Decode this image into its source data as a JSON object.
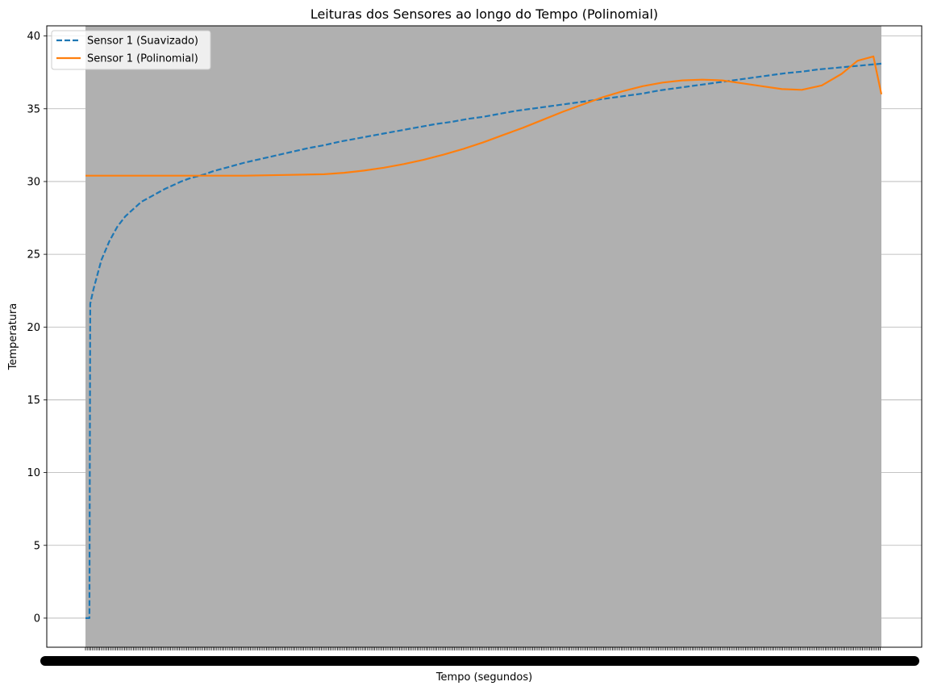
{
  "chart_data": {
    "type": "line",
    "title": "Leituras dos Sensores ao longo do Tempo (Polinomial)",
    "xlabel": "Tempo (segundos)",
    "ylabel": "Temperatura",
    "xlim": [
      0,
      1
    ],
    "ylim": [
      -2,
      40.7
    ],
    "yticks": [
      0,
      5,
      10,
      15,
      20,
      25,
      30,
      35,
      40
    ],
    "grid": "horizontal",
    "legend_position": "top-left",
    "background_band": {
      "x_start": 0.0,
      "x_end": 1.0,
      "color": "#b0b0b0"
    },
    "x_tick_labels_note": "overlapping, illegible dense timestamp labels",
    "series": [
      {
        "name": "Sensor 1 (Suavizado)",
        "style": "dashed",
        "color": "#1f77b4",
        "points": [
          [
            0.0,
            0.0
          ],
          [
            0.005,
            0.0
          ],
          [
            0.006,
            21.6
          ],
          [
            0.01,
            22.6
          ],
          [
            0.02,
            24.6
          ],
          [
            0.03,
            25.9
          ],
          [
            0.04,
            26.9
          ],
          [
            0.05,
            27.6
          ],
          [
            0.06,
            28.1
          ],
          [
            0.07,
            28.6
          ],
          [
            0.08,
            28.9
          ],
          [
            0.09,
            29.2
          ],
          [
            0.1,
            29.5
          ],
          [
            0.11,
            29.75
          ],
          [
            0.12,
            30.0
          ],
          [
            0.13,
            30.2
          ],
          [
            0.14,
            30.35
          ],
          [
            0.15,
            30.5
          ],
          [
            0.16,
            30.7
          ],
          [
            0.17,
            30.85
          ],
          [
            0.18,
            31.0
          ],
          [
            0.2,
            31.3
          ],
          [
            0.22,
            31.55
          ],
          [
            0.24,
            31.8
          ],
          [
            0.26,
            32.05
          ],
          [
            0.28,
            32.3
          ],
          [
            0.3,
            32.5
          ],
          [
            0.32,
            32.75
          ],
          [
            0.34,
            32.95
          ],
          [
            0.36,
            33.15
          ],
          [
            0.38,
            33.35
          ],
          [
            0.4,
            33.55
          ],
          [
            0.42,
            33.75
          ],
          [
            0.44,
            33.95
          ],
          [
            0.46,
            34.1
          ],
          [
            0.48,
            34.3
          ],
          [
            0.5,
            34.45
          ],
          [
            0.52,
            34.65
          ],
          [
            0.54,
            34.85
          ],
          [
            0.56,
            35.0
          ],
          [
            0.58,
            35.15
          ],
          [
            0.6,
            35.3
          ],
          [
            0.62,
            35.45
          ],
          [
            0.64,
            35.6
          ],
          [
            0.66,
            35.75
          ],
          [
            0.68,
            35.9
          ],
          [
            0.7,
            36.05
          ],
          [
            0.72,
            36.25
          ],
          [
            0.74,
            36.4
          ],
          [
            0.76,
            36.55
          ],
          [
            0.78,
            36.7
          ],
          [
            0.8,
            36.85
          ],
          [
            0.82,
            37.0
          ],
          [
            0.84,
            37.15
          ],
          [
            0.86,
            37.3
          ],
          [
            0.88,
            37.45
          ],
          [
            0.9,
            37.55
          ],
          [
            0.92,
            37.7
          ],
          [
            0.94,
            37.8
          ],
          [
            0.96,
            37.9
          ],
          [
            0.98,
            38.0
          ],
          [
            1.0,
            38.1
          ]
        ]
      },
      {
        "name": "Sensor 1 (Polinomial)",
        "style": "solid",
        "color": "#ff7f0e",
        "points": [
          [
            0.0,
            30.4
          ],
          [
            0.05,
            30.4
          ],
          [
            0.1,
            30.4
          ],
          [
            0.15,
            30.4
          ],
          [
            0.2,
            30.4
          ],
          [
            0.25,
            30.45
          ],
          [
            0.3,
            30.5
          ],
          [
            0.325,
            30.6
          ],
          [
            0.35,
            30.75
          ],
          [
            0.375,
            30.95
          ],
          [
            0.4,
            31.2
          ],
          [
            0.425,
            31.5
          ],
          [
            0.45,
            31.85
          ],
          [
            0.475,
            32.25
          ],
          [
            0.5,
            32.7
          ],
          [
            0.525,
            33.2
          ],
          [
            0.55,
            33.7
          ],
          [
            0.575,
            34.25
          ],
          [
            0.6,
            34.8
          ],
          [
            0.625,
            35.3
          ],
          [
            0.65,
            35.8
          ],
          [
            0.675,
            36.2
          ],
          [
            0.7,
            36.55
          ],
          [
            0.725,
            36.8
          ],
          [
            0.75,
            36.95
          ],
          [
            0.775,
            37.0
          ],
          [
            0.8,
            36.95
          ],
          [
            0.825,
            36.75
          ],
          [
            0.85,
            36.55
          ],
          [
            0.875,
            36.35
          ],
          [
            0.9,
            36.3
          ],
          [
            0.925,
            36.6
          ],
          [
            0.95,
            37.4
          ],
          [
            0.97,
            38.3
          ],
          [
            0.99,
            38.6
          ],
          [
            1.0,
            36.0
          ]
        ]
      }
    ]
  }
}
